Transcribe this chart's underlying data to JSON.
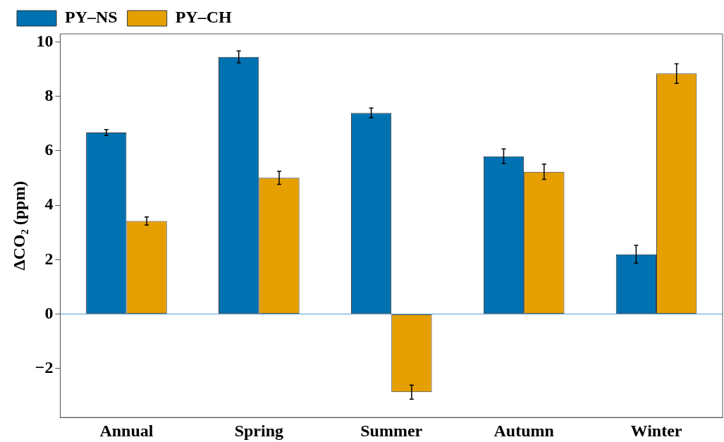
{
  "chart_data": {
    "type": "bar",
    "ylabel": "ΔCO₂ (ppm)",
    "categories": [
      "Annual",
      "Spring",
      "Summer",
      "Autumn",
      "Winter"
    ],
    "series": [
      {
        "name": "PY–NS",
        "color": "#0072b2",
        "values": [
          6.67,
          9.45,
          7.39,
          5.8,
          2.2
        ],
        "errors": [
          0.11,
          0.22,
          0.18,
          0.27,
          0.33
        ]
      },
      {
        "name": "PY–CH",
        "color": "#e69f00",
        "values": [
          3.42,
          5.01,
          -2.87,
          5.23,
          8.84
        ],
        "errors": [
          0.15,
          0.24,
          0.26,
          0.28,
          0.36
        ]
      }
    ],
    "ylim": [
      -3.8,
      10.3
    ],
    "yticks": [
      {
        "value": -2,
        "label": "−2"
      },
      0,
      2,
      4,
      6,
      8,
      10
    ],
    "ref_lines": [
      {
        "axis": "y",
        "value": 0,
        "color": "#7fb8e0"
      }
    ],
    "grid": false,
    "legend": "top left"
  }
}
